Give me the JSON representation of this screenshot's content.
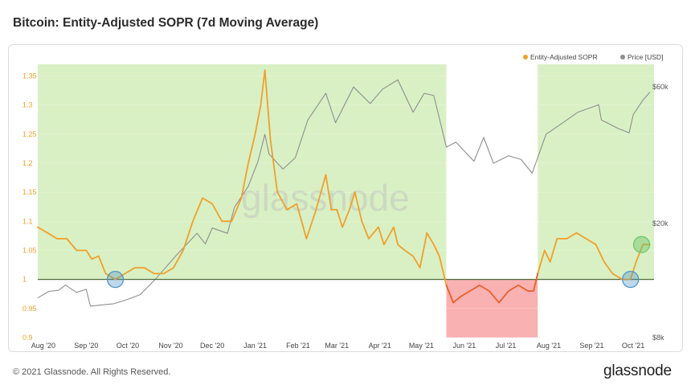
{
  "title": "Bitcoin: Entity-Adjusted SOPR (7d Moving Average)",
  "footer": {
    "copyright": "© 2021 Glassnode. All Rights Reserved.",
    "brand": "glassnode"
  },
  "watermark": "glassnode",
  "colors": {
    "sopr": "#f0a02a",
    "sopr_below": "#e8602c",
    "price": "#8e8e8e",
    "green_zone": "#d9f0c4",
    "red_zone": "#f9b1b1",
    "baseline": "#4e6b3a",
    "circle_blue": "#4a90c8",
    "circle_green": "#6cc46a"
  },
  "chart_data": {
    "type": "line",
    "title": "Bitcoin: Entity-Adjusted SOPR (7d Moving Average)",
    "x_range": [
      "2020-07-28",
      "2021-10-16"
    ],
    "x_ticks": [
      "Aug '20",
      "Sep '20",
      "Oct '20",
      "Nov '20",
      "Dec '20",
      "Jan '21",
      "Feb '21",
      "Mar '21",
      "Apr '21",
      "May '21",
      "Jun '21",
      "Jul '21",
      "Aug '21",
      "Sep '21",
      "Oct '21"
    ],
    "y_left": {
      "range": [
        0.9,
        1.37
      ],
      "ticks": [
        "1.35",
        "1.3",
        "1.25",
        "1.2",
        "1.15",
        "1.1",
        "1.05",
        "1",
        "0.95",
        "0.9"
      ]
    },
    "y_right": {
      "scale": "log",
      "range": [
        8000,
        72000
      ],
      "ticks": [
        "$60k",
        "$20k",
        "$8k"
      ]
    },
    "legend": [
      "Entity-Adjusted SOPR",
      "Price [USD]"
    ],
    "legend_position": "top-right",
    "baseline": 1.0,
    "zones": [
      {
        "type": "bullish",
        "start": "2020-07-28",
        "end": "2021-05-19"
      },
      {
        "type": "bearish",
        "start": "2021-05-19",
        "end": "2021-07-24"
      },
      {
        "type": "bullish",
        "start": "2021-07-24",
        "end": "2021-10-16"
      }
    ],
    "highlights": [
      {
        "date": "2020-09-22",
        "value": 1.0,
        "color": "blue"
      },
      {
        "date": "2021-09-29",
        "value": 1.0,
        "color": "blue"
      },
      {
        "date": "2021-10-07",
        "value": 1.06,
        "color": "green"
      }
    ],
    "series": [
      {
        "name": "Entity-Adjusted SOPR",
        "axis": "left",
        "points": [
          [
            "2020-07-28",
            1.09
          ],
          [
            "2020-08-04",
            1.08
          ],
          [
            "2020-08-11",
            1.07
          ],
          [
            "2020-08-18",
            1.07
          ],
          [
            "2020-08-25",
            1.05
          ],
          [
            "2020-09-01",
            1.05
          ],
          [
            "2020-09-05",
            1.035
          ],
          [
            "2020-09-10",
            1.04
          ],
          [
            "2020-09-15",
            1.01
          ],
          [
            "2020-09-22",
            1.0
          ],
          [
            "2020-09-29",
            1.01
          ],
          [
            "2020-10-06",
            1.02
          ],
          [
            "2020-10-13",
            1.02
          ],
          [
            "2020-10-20",
            1.01
          ],
          [
            "2020-10-27",
            1.01
          ],
          [
            "2020-11-03",
            1.02
          ],
          [
            "2020-11-10",
            1.05
          ],
          [
            "2020-11-17",
            1.1
          ],
          [
            "2020-11-24",
            1.14
          ],
          [
            "2020-12-01",
            1.13
          ],
          [
            "2020-12-08",
            1.1
          ],
          [
            "2020-12-15",
            1.1
          ],
          [
            "2020-12-22",
            1.14
          ],
          [
            "2020-12-27",
            1.2
          ],
          [
            "2021-01-01",
            1.25
          ],
          [
            "2021-01-05",
            1.3
          ],
          [
            "2021-01-08",
            1.36
          ],
          [
            "2021-01-12",
            1.24
          ],
          [
            "2021-01-17",
            1.15
          ],
          [
            "2021-01-24",
            1.12
          ],
          [
            "2021-01-31",
            1.13
          ],
          [
            "2021-02-07",
            1.07
          ],
          [
            "2021-02-14",
            1.12
          ],
          [
            "2021-02-21",
            1.18
          ],
          [
            "2021-02-25",
            1.12
          ],
          [
            "2021-03-01",
            1.12
          ],
          [
            "2021-03-05",
            1.09
          ],
          [
            "2021-03-10",
            1.12
          ],
          [
            "2021-03-14",
            1.15
          ],
          [
            "2021-03-19",
            1.1
          ],
          [
            "2021-03-24",
            1.07
          ],
          [
            "2021-03-31",
            1.09
          ],
          [
            "2021-04-04",
            1.06
          ],
          [
            "2021-04-11",
            1.09
          ],
          [
            "2021-04-14",
            1.06
          ],
          [
            "2021-04-19",
            1.05
          ],
          [
            "2021-04-25",
            1.04
          ],
          [
            "2021-04-30",
            1.02
          ],
          [
            "2021-05-05",
            1.08
          ],
          [
            "2021-05-10",
            1.06
          ],
          [
            "2021-05-14",
            1.04
          ],
          [
            "2021-05-19",
            0.99
          ],
          [
            "2021-05-24",
            0.96
          ],
          [
            "2021-05-29",
            0.97
          ],
          [
            "2021-06-05",
            0.98
          ],
          [
            "2021-06-12",
            0.99
          ],
          [
            "2021-06-19",
            0.98
          ],
          [
            "2021-06-26",
            0.96
          ],
          [
            "2021-07-03",
            0.98
          ],
          [
            "2021-07-10",
            0.99
          ],
          [
            "2021-07-17",
            0.98
          ],
          [
            "2021-07-21",
            0.98
          ],
          [
            "2021-07-24",
            1.01
          ],
          [
            "2021-07-29",
            1.05
          ],
          [
            "2021-08-02",
            1.03
          ],
          [
            "2021-08-07",
            1.07
          ],
          [
            "2021-08-14",
            1.07
          ],
          [
            "2021-08-21",
            1.08
          ],
          [
            "2021-08-28",
            1.07
          ],
          [
            "2021-09-04",
            1.06
          ],
          [
            "2021-09-10",
            1.03
          ],
          [
            "2021-09-16",
            1.01
          ],
          [
            "2021-09-23",
            1.0
          ],
          [
            "2021-09-29",
            1.0
          ],
          [
            "2021-10-03",
            1.03
          ],
          [
            "2021-10-08",
            1.06
          ],
          [
            "2021-10-13",
            1.06
          ]
        ]
      },
      {
        "name": "Price [USD]",
        "axis": "right",
        "unit": "USD",
        "points": [
          [
            "2020-07-28",
            11000
          ],
          [
            "2020-08-05",
            11600
          ],
          [
            "2020-08-12",
            11700
          ],
          [
            "2020-08-17",
            12200
          ],
          [
            "2020-08-25",
            11500
          ],
          [
            "2020-09-01",
            11800
          ],
          [
            "2020-09-04",
            10300
          ],
          [
            "2020-09-12",
            10400
          ],
          [
            "2020-09-21",
            10500
          ],
          [
            "2020-09-29",
            10800
          ],
          [
            "2020-10-10",
            11300
          ],
          [
            "2020-10-21",
            12800
          ],
          [
            "2020-11-05",
            15500
          ],
          [
            "2020-11-20",
            18500
          ],
          [
            "2020-11-26",
            17000
          ],
          [
            "2020-12-01",
            19300
          ],
          [
            "2020-12-12",
            18500
          ],
          [
            "2020-12-17",
            22800
          ],
          [
            "2020-12-27",
            27000
          ],
          [
            "2021-01-03",
            33000
          ],
          [
            "2021-01-08",
            41000
          ],
          [
            "2021-01-11",
            35000
          ],
          [
            "2021-01-21",
            31000
          ],
          [
            "2021-01-30",
            34000
          ],
          [
            "2021-02-08",
            46000
          ],
          [
            "2021-02-21",
            57000
          ],
          [
            "2021-02-28",
            45000
          ],
          [
            "2021-03-13",
            60000
          ],
          [
            "2021-03-25",
            52500
          ],
          [
            "2021-04-03",
            59000
          ],
          [
            "2021-04-14",
            63500
          ],
          [
            "2021-04-25",
            49000
          ],
          [
            "2021-05-03",
            57000
          ],
          [
            "2021-05-10",
            56000
          ],
          [
            "2021-05-19",
            37000
          ],
          [
            "2021-05-26",
            38500
          ],
          [
            "2021-06-08",
            33000
          ],
          [
            "2021-06-15",
            40000
          ],
          [
            "2021-06-22",
            32500
          ],
          [
            "2021-07-03",
            34500
          ],
          [
            "2021-07-12",
            33500
          ],
          [
            "2021-07-20",
            30000
          ],
          [
            "2021-07-30",
            41000
          ],
          [
            "2021-08-14",
            46000
          ],
          [
            "2021-08-22",
            49000
          ],
          [
            "2021-09-06",
            52000
          ],
          [
            "2021-09-08",
            46000
          ],
          [
            "2021-09-20",
            43000
          ],
          [
            "2021-09-28",
            41500
          ],
          [
            "2021-10-01",
            48000
          ],
          [
            "2021-10-08",
            54000
          ],
          [
            "2021-10-13",
            57500
          ]
        ]
      }
    ]
  }
}
